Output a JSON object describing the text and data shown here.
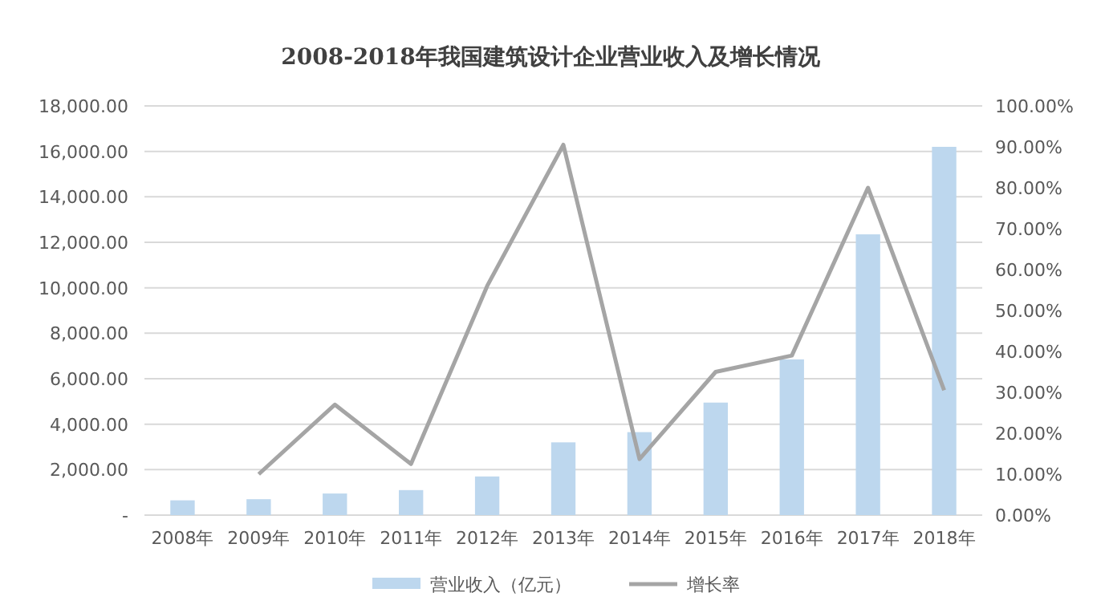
{
  "chart_data": {
    "type": "bar",
    "title": "2008-2018年我国建筑设计企业营业收入及增长情况",
    "categories": [
      "2008年",
      "2009年",
      "2010年",
      "2011年",
      "2012年",
      "2013年",
      "2014年",
      "2015年",
      "2016年",
      "2017年",
      "2018年"
    ],
    "series": [
      {
        "name": "营业收入（亿元）",
        "color": "#bdd7ee",
        "values": [
          650,
          700,
          950,
          1100,
          1700,
          3200,
          3650,
          4950,
          6850,
          12350,
          16200
        ]
      },
      {
        "name": "增长率",
        "type": "line",
        "axis": "y2",
        "color": "#a5a5a5",
        "values": [
          null,
          10,
          27,
          12.5,
          56,
          90.5,
          13.7,
          35,
          39,
          80,
          30.5
        ]
      }
    ],
    "ylim": [
      0,
      18000
    ],
    "yticks": [
      {
        "value": 0,
        "label": "-"
      },
      {
        "value": 2000,
        "label": "2,000.00"
      },
      {
        "value": 4000,
        "label": "4,000.00"
      },
      {
        "value": 6000,
        "label": "6,000.00"
      },
      {
        "value": 8000,
        "label": "8,000.00"
      },
      {
        "value": 10000,
        "label": "10,000.00"
      },
      {
        "value": 12000,
        "label": "12,000.00"
      },
      {
        "value": 14000,
        "label": "14,000.00"
      },
      {
        "value": 16000,
        "label": "16,000.00"
      },
      {
        "value": 18000,
        "label": "18,000.00"
      }
    ],
    "y2lim": [
      0,
      100
    ],
    "y2ticks": [
      {
        "value": 0,
        "label": "0.00%"
      },
      {
        "value": 10,
        "label": "10.00%"
      },
      {
        "value": 20,
        "label": "20.00%"
      },
      {
        "value": 30,
        "label": "30.00%"
      },
      {
        "value": 40,
        "label": "40.00%"
      },
      {
        "value": 50,
        "label": "50.00%"
      },
      {
        "value": 60,
        "label": "60.00%"
      },
      {
        "value": 70,
        "label": "70.00%"
      },
      {
        "value": 80,
        "label": "80.00%"
      },
      {
        "value": 90,
        "label": "90.00%"
      },
      {
        "value": 100,
        "label": "100.00%"
      }
    ],
    "grid": "y",
    "legend": "bottom",
    "marker": "none",
    "line_style": "solid"
  }
}
